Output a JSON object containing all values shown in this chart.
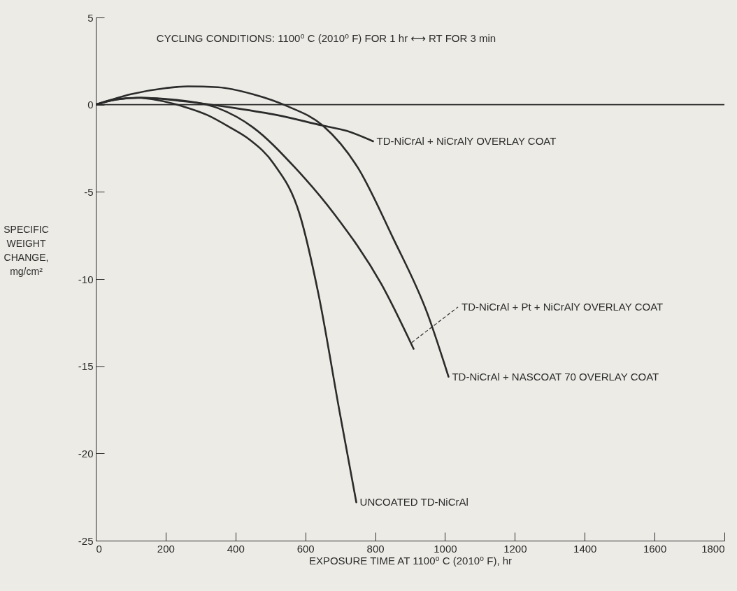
{
  "chart_data": {
    "type": "line",
    "title": "CYCLING CONDITIONS:  1100⁰ C (2010⁰ F) FOR 1 hr ⟷ RT FOR 3 min",
    "xlabel": "EXPOSURE TIME AT 1100⁰ C (2010⁰ F), hr",
    "ylabel": "SPECIFIC WEIGHT CHANGE, mg/cm²",
    "xlim": [
      0,
      1800
    ],
    "xticks": [
      0,
      200,
      400,
      600,
      800,
      1000,
      1200,
      1400,
      1600,
      1800
    ],
    "ylim": [
      -25,
      5
    ],
    "yticks": [
      5,
      0,
      -5,
      -10,
      -15,
      -20,
      -25
    ],
    "grid": false,
    "marker": "none",
    "line_style": "solid",
    "ref_lines": [
      {
        "axis": "y",
        "value": 0,
        "color": "#2b2b2b"
      }
    ],
    "series": [
      {
        "name": "UNCOATED TD-NiCrAl",
        "color": "#2b2b2b",
        "x": [
          0,
          50,
          118,
          180,
          250,
          320,
          384,
          440,
          510,
          584,
          638,
          698,
          746
        ],
        "values": [
          0,
          0.3,
          0.4,
          0.25,
          -0.1,
          -0.6,
          -1.3,
          -2.0,
          -3.4,
          -6.3,
          -10.9,
          -17.6,
          -22.8
        ]
      },
      {
        "name": "TD-NiCrAl + Pt + NiCrAlY OVERLAY COAT",
        "color": "#2b2b2b",
        "x": [
          0,
          60,
          130,
          220,
          350,
          450,
          570,
          684,
          818,
          910
        ],
        "values": [
          0,
          0.3,
          0.4,
          0.3,
          -0.2,
          -1.3,
          -3.6,
          -6.3,
          -10.3,
          -14.0
        ]
      },
      {
        "name": "TD-NiCrAl + NiCrAlY OVERLAY COAT",
        "color": "#2b2b2b",
        "x": [
          0,
          60,
          130,
          250,
          400,
          520,
          650,
          718,
          794
        ],
        "values": [
          0,
          0.3,
          0.4,
          0.2,
          -0.2,
          -0.6,
          -1.2,
          -1.5,
          -2.1
        ]
      },
      {
        "name": "TD-NiCrAl + NASCOAT 70 OVERLAY COAT",
        "color": "#2b2b2b",
        "x": [
          0,
          100,
          200,
          264,
          350,
          450,
          550,
          650,
          750,
          850,
          950,
          1010
        ],
        "values": [
          0,
          0.6,
          0.95,
          1.05,
          1.0,
          0.6,
          -0.1,
          -1.2,
          -3.6,
          -7.6,
          -12,
          -15.6
        ]
      }
    ]
  }
}
